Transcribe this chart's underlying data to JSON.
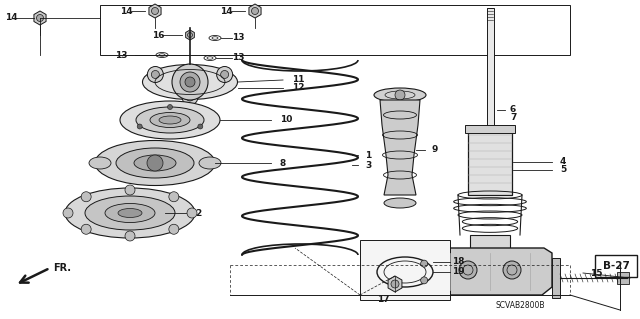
{
  "bg_color": "#ffffff",
  "lc": "#1a1a1a",
  "page_ref": "B-27",
  "part_code": "SCVAB2800B",
  "fr_label": "FR.",
  "figsize": [
    6.4,
    3.19
  ],
  "dpi": 100,
  "xlim": [
    0,
    640
  ],
  "ylim": [
    0,
    319
  ]
}
